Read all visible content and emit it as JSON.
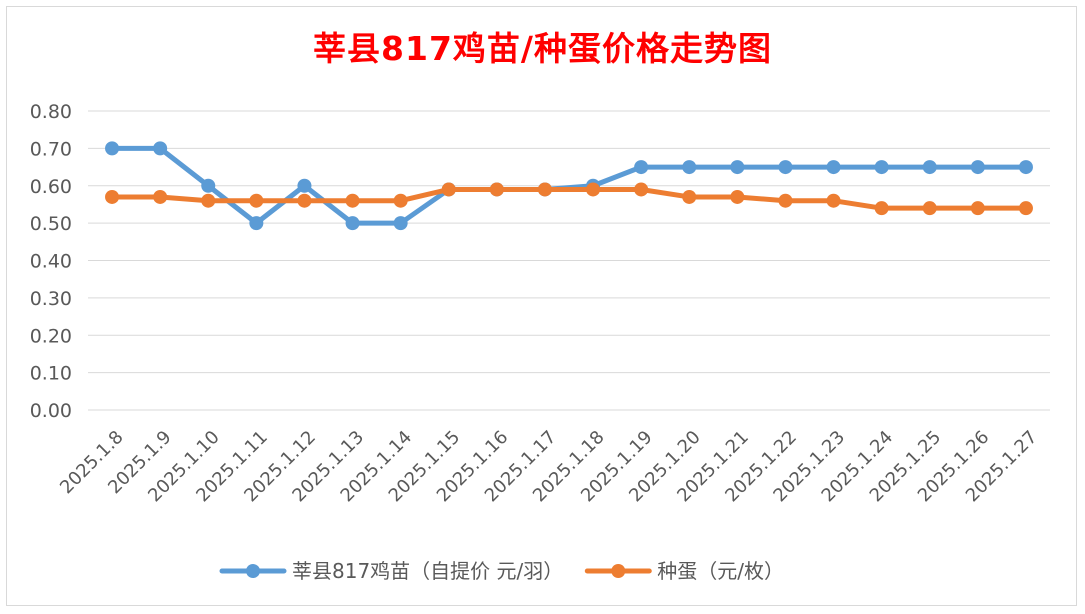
{
  "chart_data": {
    "type": "line",
    "title": "莘县817鸡苗/种蛋价格走势图",
    "categories": [
      "2025.1.8",
      "2025.1.9",
      "2025.1.10",
      "2025.1.11",
      "2025.1.12",
      "2025.1.13",
      "2025.1.14",
      "2025.1.15",
      "2025.1.16",
      "2025.1.17",
      "2025.1.18",
      "2025.1.19",
      "2025.1.20",
      "2025.1.21",
      "2025.1.22",
      "2025.1.23",
      "2025.1.24",
      "2025.1.25",
      "2025.1.26",
      "2025.1.27"
    ],
    "series": [
      {
        "name": "莘县817鸡苗（自提价 元/羽）",
        "color": "#5b9bd5",
        "values": [
          0.7,
          0.7,
          0.6,
          0.5,
          0.6,
          0.5,
          0.5,
          0.59,
          0.59,
          0.59,
          0.6,
          0.65,
          0.65,
          0.65,
          0.65,
          0.65,
          0.65,
          0.65,
          0.65,
          0.65
        ]
      },
      {
        "name": "种蛋（元/枚）",
        "color": "#ed7d31",
        "values": [
          0.57,
          0.57,
          0.56,
          0.56,
          0.56,
          0.56,
          0.56,
          0.59,
          0.59,
          0.59,
          0.59,
          0.59,
          0.57,
          0.57,
          0.56,
          0.56,
          0.54,
          0.54,
          0.54,
          0.54
        ]
      }
    ],
    "ylim": [
      0,
      0.8
    ],
    "yticks": [
      "0.00",
      "0.10",
      "0.20",
      "0.30",
      "0.40",
      "0.50",
      "0.60",
      "0.70",
      "0.80"
    ],
    "xlabel": "",
    "ylabel": "",
    "grid": true,
    "legend": "bottom"
  }
}
